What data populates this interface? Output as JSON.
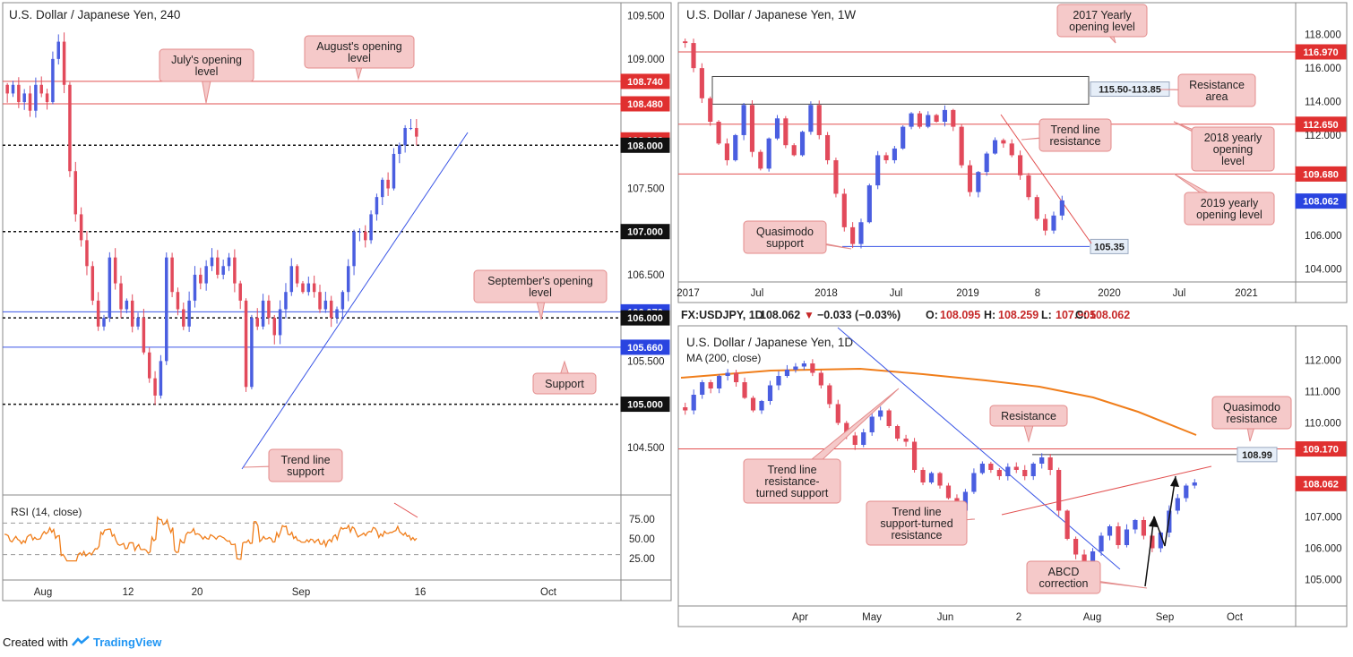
{
  "colors": {
    "up": "#4a5ee0",
    "down": "#e24a5b",
    "red_line": "#e25050",
    "blue_line": "#3a55e6",
    "rsi": "#f07e1b",
    "ma": "#f07e1b",
    "callout_bg": "#f5c9c9",
    "callout_border": "#e38b8b",
    "red_badge": "#e03030",
    "blue_badge": "#2a44e0",
    "dark_badge": "#111111",
    "neutral_badge": "#e6eef8"
  },
  "footer": {
    "prefix": "Created with",
    "brand": "TradingView"
  },
  "chart_data": [
    {
      "id": "h4",
      "type": "candlestick",
      "title": "U.S. Dollar / Japanese Yen, 240",
      "ylim": [
        104.0,
        109.6
      ],
      "x_ticks": [
        "Aug",
        "12",
        "20",
        "Sep",
        "16",
        "Oct"
      ],
      "y_ticks": [
        "109.500",
        "109.000",
        "107.500",
        "106.500",
        "105.500",
        "104.500"
      ],
      "levels": [
        {
          "value": 108.74,
          "label": "108.740",
          "style": "red"
        },
        {
          "value": 108.48,
          "label": "108.480",
          "style": "red"
        },
        {
          "value": 108.062,
          "label": "108.062",
          "style": "red-badge"
        },
        {
          "value": 108.0,
          "label": "108.000",
          "style": "dotted"
        },
        {
          "value": 107.0,
          "label": "107.000",
          "style": "dotted"
        },
        {
          "value": 106.07,
          "label": "106.070",
          "style": "blue"
        },
        {
          "value": 106.0,
          "label": "106.000",
          "style": "dotted"
        },
        {
          "value": 105.66,
          "label": "105.660",
          "style": "blue"
        },
        {
          "value": 105.0,
          "label": "105.000",
          "style": "dotted"
        }
      ],
      "annotations": [
        "August's opening level",
        "July's opening level",
        "September's opening level",
        "Support",
        "Trend line support"
      ],
      "close_path": [
        108.6,
        108.7,
        108.5,
        108.6,
        108.4,
        108.7,
        108.6,
        108.5,
        109.0,
        109.2,
        108.7,
        107.7,
        107.2,
        106.9,
        106.6,
        106.2,
        105.9,
        106.0,
        106.7,
        106.4,
        106.1,
        106.2,
        105.9,
        106.0,
        105.6,
        105.3,
        105.1,
        105.5,
        106.7,
        106.3,
        106.1,
        105.9,
        106.2,
        106.5,
        106.4,
        106.6,
        106.7,
        106.5,
        106.6,
        106.7,
        106.4,
        106.2,
        105.2,
        106.0,
        105.9,
        106.2,
        106.0,
        105.8,
        106.1,
        106.3,
        106.6,
        106.4,
        106.3,
        106.4,
        106.3,
        106.1,
        106.2,
        106.0,
        106.1,
        106.3,
        106.6,
        107.0,
        107.0,
        106.9,
        107.2,
        107.4,
        107.6,
        107.5,
        107.9,
        108.0,
        108.2,
        108.2,
        108.1
      ],
      "rsi": {
        "label": "RSI (14, close)",
        "ticks": [
          "75.00",
          "50.00",
          "25.00"
        ],
        "levels": [
          70,
          30
        ]
      }
    },
    {
      "id": "w1",
      "type": "candlestick",
      "title": "U.S. Dollar / Japanese Yen, 1W",
      "ylim": [
        103.5,
        119.0
      ],
      "x_ticks": [
        "2017",
        "Jul",
        "2018",
        "Jul",
        "2019",
        "8",
        "2020",
        "Jul",
        "2021"
      ],
      "y_ticks": [
        "118.000",
        "116.000",
        "114.000",
        "112.000",
        "106.000",
        "104.000"
      ],
      "levels": [
        {
          "value": 116.97,
          "label": "116.970",
          "style": "red"
        },
        {
          "value": 112.65,
          "label": "112.650",
          "style": "red"
        },
        {
          "value": 109.68,
          "label": "109.680",
          "style": "red"
        },
        {
          "value": 108.062,
          "label": "108.062",
          "style": "blue-badge"
        }
      ],
      "zone": {
        "label": "115.50-113.85",
        "high": 115.5,
        "low": 113.85
      },
      "support_label": "105.35",
      "annotations": [
        "2017 Yearly opening level",
        "Resistance area",
        "Trend line resistance",
        "2018 yearly opening level",
        "2019 yearly opening level",
        "Quasimodo support"
      ],
      "close_path": [
        117.5,
        116.0,
        114.2,
        112.8,
        111.5,
        110.5,
        112.0,
        113.8,
        111.0,
        110.0,
        111.8,
        113.0,
        111.4,
        110.8,
        112.2,
        113.8,
        112.0,
        110.5,
        108.5,
        106.5,
        105.5,
        106.8,
        109.0,
        110.8,
        110.5,
        111.2,
        112.5,
        113.3,
        112.5,
        113.2,
        112.8,
        113.5,
        112.5,
        110.2,
        108.6,
        109.8,
        110.9,
        111.7,
        111.5,
        110.8,
        109.6,
        108.3,
        107.0,
        106.3,
        107.2,
        108.1
      ]
    },
    {
      "id": "d1",
      "type": "candlestick",
      "title": "U.S. Dollar / Japanese Yen, 1D",
      "symbol_line": {
        "symbol": "FX:USDJPY, 1D",
        "last": "108.062",
        "arrow": "▼",
        "change": "−0.033 (−0.03%)",
        "O": "108.095",
        "H": "108.259",
        "L": "107.905",
        "C": "108.062"
      },
      "ma_label": "MA (200, close)",
      "ylim": [
        104.3,
        112.7
      ],
      "x_ticks": [
        "Apr",
        "May",
        "Jun",
        "2",
        "Aug",
        "Sep",
        "Oct"
      ],
      "y_ticks": [
        "112.000",
        "111.000",
        "110.000",
        "107.000",
        "106.000",
        "105.000"
      ],
      "levels": [
        {
          "value": 109.17,
          "label": "109.170",
          "style": "red"
        },
        {
          "value": 108.99,
          "label": "108.99",
          "style": "neutral"
        },
        {
          "value": 108.062,
          "label": "108.062",
          "style": "red-badge"
        }
      ],
      "annotations": [
        "Resistance",
        "Quasimodo resistance",
        "Trend line resistance-turned support",
        "Trend line support-turned resistance",
        "ABCD correction"
      ],
      "close_path": [
        110.4,
        110.9,
        111.3,
        111.1,
        111.5,
        111.6,
        111.3,
        110.8,
        110.4,
        110.7,
        111.2,
        111.5,
        111.7,
        111.8,
        111.9,
        111.6,
        111.2,
        110.6,
        110.0,
        109.6,
        109.3,
        109.7,
        110.2,
        110.4,
        109.9,
        109.5,
        109.4,
        108.5,
        108.1,
        108.4,
        108.0,
        107.6,
        107.2,
        107.8,
        108.4,
        108.7,
        108.5,
        108.3,
        108.6,
        108.5,
        108.3,
        108.7,
        108.9,
        108.5,
        107.2,
        106.3,
        105.8,
        105.5,
        105.9,
        106.4,
        106.7,
        106.1,
        106.6,
        106.9,
        106.4,
        106.0,
        106.5,
        107.2,
        107.6,
        108.0,
        108.1
      ]
    }
  ]
}
